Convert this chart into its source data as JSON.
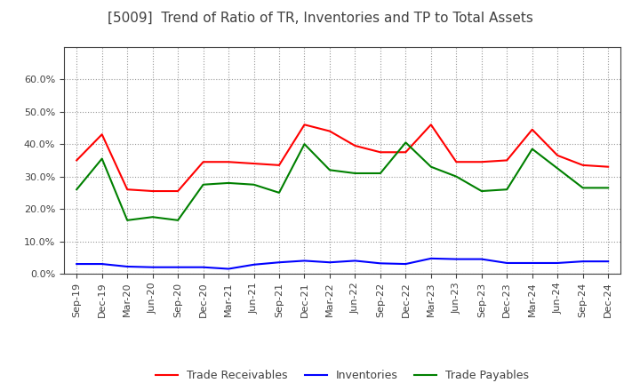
{
  "title": "[5009]  Trend of Ratio of TR, Inventories and TP to Total Assets",
  "x_labels": [
    "Sep-19",
    "Dec-19",
    "Mar-20",
    "Jun-20",
    "Sep-20",
    "Dec-20",
    "Mar-21",
    "Jun-21",
    "Sep-21",
    "Dec-21",
    "Mar-22",
    "Jun-22",
    "Sep-22",
    "Dec-22",
    "Mar-23",
    "Jun-23",
    "Sep-23",
    "Dec-23",
    "Mar-24",
    "Jun-24",
    "Sep-24",
    "Dec-24"
  ],
  "trade_receivables": [
    0.35,
    0.43,
    0.26,
    0.255,
    0.255,
    0.345,
    0.345,
    0.34,
    0.335,
    0.46,
    0.44,
    0.395,
    0.375,
    0.375,
    0.46,
    0.345,
    0.345,
    0.35,
    0.445,
    0.365,
    0.335,
    0.33
  ],
  "inventories": [
    0.03,
    0.03,
    0.022,
    0.02,
    0.02,
    0.02,
    0.015,
    0.028,
    0.035,
    0.04,
    0.035,
    0.04,
    0.032,
    0.03,
    0.047,
    0.045,
    0.045,
    0.033,
    0.033,
    0.033,
    0.038,
    0.038
  ],
  "trade_payables": [
    0.26,
    0.355,
    0.165,
    0.175,
    0.165,
    0.275,
    0.28,
    0.275,
    0.25,
    0.4,
    0.32,
    0.31,
    0.31,
    0.405,
    0.33,
    0.3,
    0.255,
    0.26,
    0.385,
    0.325,
    0.265,
    0.265
  ],
  "tr_color": "#FF0000",
  "inv_color": "#0000FF",
  "tp_color": "#008000",
  "ylim": [
    0.0,
    0.7
  ],
  "yticks": [
    0.0,
    0.1,
    0.2,
    0.3,
    0.4,
    0.5,
    0.6
  ],
  "background_color": "#ffffff",
  "grid_color": "#999999",
  "title_fontsize": 11,
  "title_color": "#404040",
  "tick_fontsize": 8,
  "legend_fontsize": 9,
  "line_width": 1.5,
  "legend_labels": [
    "Trade Receivables",
    "Inventories",
    "Trade Payables"
  ]
}
